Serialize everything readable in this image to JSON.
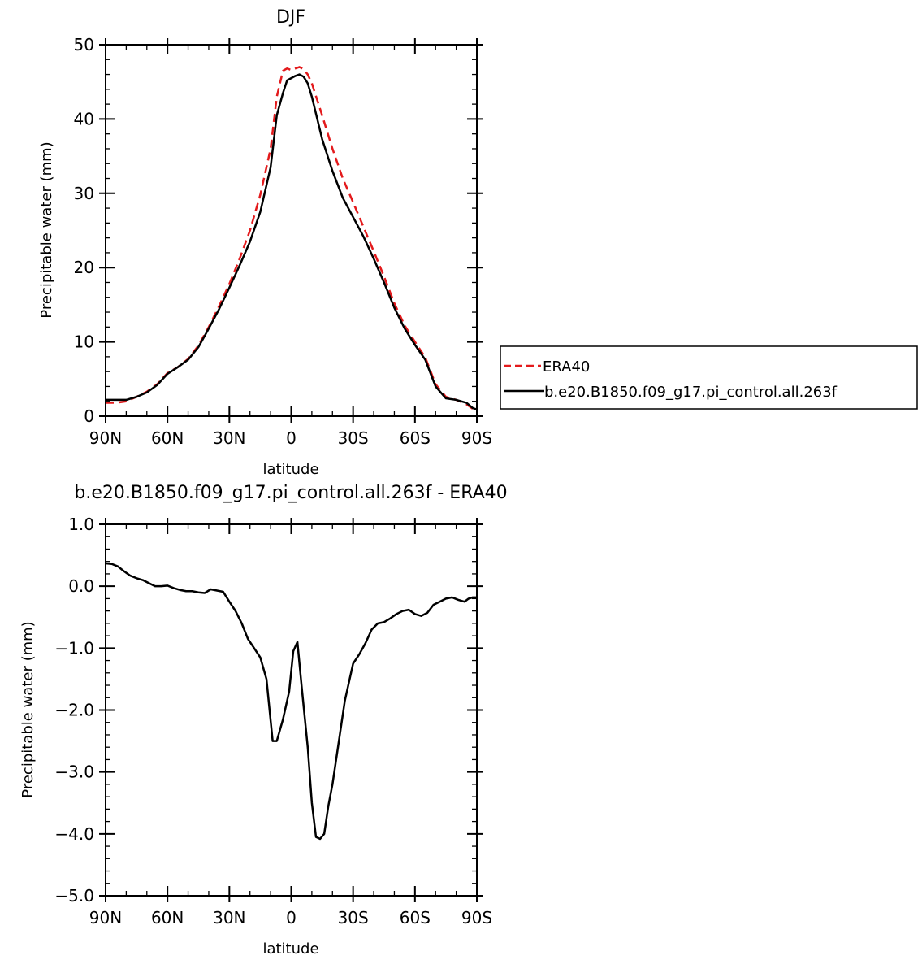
{
  "chart_data": [
    {
      "type": "line",
      "title": "DJF",
      "xlabel": "latitude",
      "ylabel": "Precipitable water (mm)",
      "xlim": [
        -90,
        90
      ],
      "ylim": [
        0,
        50
      ],
      "x_ticks": [
        -90,
        -60,
        -30,
        0,
        30,
        60,
        90
      ],
      "x_tick_labels": [
        "90N",
        "60N",
        "30N",
        "0",
        "30S",
        "60S",
        "90S"
      ],
      "y_ticks": [
        0,
        10,
        20,
        30,
        40,
        50
      ],
      "y_tick_labels": [
        "0",
        "10",
        "20",
        "30",
        "40",
        "50"
      ],
      "legend_position": "right",
      "series": [
        {
          "name": "ERA40",
          "color": "#e31a1c",
          "dash": true,
          "x": [
            -90,
            -85,
            -80,
            -75,
            -70,
            -65,
            -60,
            -55,
            -50,
            -45,
            -40,
            -35,
            -30,
            -25,
            -20,
            -15,
            -10,
            -7,
            -4,
            -2,
            0,
            2,
            4,
            6,
            8,
            10,
            15,
            20,
            25,
            30,
            35,
            40,
            45,
            50,
            55,
            60,
            65,
            70,
            75,
            80,
            85,
            88,
            90
          ],
          "y": [
            1.8,
            1.8,
            2.0,
            2.6,
            3.3,
            4.3,
            5.8,
            6.6,
            7.7,
            9.5,
            12.0,
            14.8,
            17.8,
            21.2,
            25.0,
            29.8,
            36.0,
            43.0,
            46.5,
            46.8,
            46.6,
            46.8,
            47.0,
            46.7,
            46.0,
            44.8,
            40.5,
            36.0,
            32.0,
            28.8,
            25.5,
            22.2,
            18.8,
            15.2,
            12.2,
            10.0,
            7.9,
            4.3,
            2.6,
            2.2,
            1.6,
            1.0,
            0.9
          ]
        },
        {
          "name": "b.e20.B1850.f09_g17.pi_control.all.263f",
          "color": "#000000",
          "dash": false,
          "x": [
            -90,
            -85,
            -80,
            -75,
            -70,
            -65,
            -60,
            -55,
            -50,
            -45,
            -40,
            -35,
            -30,
            -25,
            -20,
            -15,
            -10,
            -7,
            -4,
            -2,
            0,
            2,
            4,
            6,
            8,
            10,
            15,
            20,
            25,
            30,
            35,
            40,
            45,
            50,
            55,
            60,
            65,
            70,
            75,
            80,
            85,
            88,
            90
          ],
          "y": [
            2.2,
            2.2,
            2.2,
            2.6,
            3.2,
            4.2,
            5.7,
            6.6,
            7.6,
            9.3,
            11.8,
            14.4,
            17.3,
            20.3,
            23.5,
            27.5,
            33.5,
            40.5,
            43.5,
            45.2,
            45.5,
            45.8,
            46.0,
            45.7,
            44.8,
            43.0,
            37.3,
            33.0,
            29.4,
            26.8,
            24.2,
            21.2,
            18.0,
            14.6,
            11.8,
            9.6,
            7.6,
            4.0,
            2.4,
            2.2,
            1.8,
            1.1,
            0.9
          ]
        }
      ]
    },
    {
      "type": "line",
      "title": "b.e20.B1850.f09_g17.pi_control.all.263f - ERA40",
      "xlabel": "latitude",
      "ylabel": "Precipitable water (mm)",
      "xlim": [
        -90,
        90
      ],
      "ylim": [
        -5.0,
        1.0
      ],
      "x_ticks": [
        -90,
        -60,
        -30,
        0,
        30,
        60,
        90
      ],
      "x_tick_labels": [
        "90N",
        "60N",
        "30N",
        "0",
        "30S",
        "60S",
        "90S"
      ],
      "y_ticks": [
        -5.0,
        -4.0,
        -3.0,
        -2.0,
        -1.0,
        0.0,
        1.0
      ],
      "y_tick_labels": [
        "−5.0",
        "−4.0",
        "−3.0",
        "−2.0",
        "−1.0",
        "0.0",
        "1.0"
      ],
      "series": [
        {
          "color": "#000000",
          "dash": false,
          "x": [
            -90,
            -87,
            -84,
            -81,
            -78,
            -75,
            -72,
            -69,
            -66,
            -63,
            -60,
            -57,
            -54,
            -51,
            -48,
            -45,
            -42,
            -39,
            -36,
            -33,
            -30,
            -27,
            -24,
            -21,
            -18,
            -15,
            -12,
            -9,
            -7,
            -4,
            -1,
            1,
            3,
            5,
            8,
            10,
            12,
            14,
            16,
            18,
            20,
            22,
            24,
            26,
            28,
            30,
            33,
            36,
            39,
            42,
            45,
            48,
            51,
            54,
            57,
            60,
            63,
            66,
            69,
            72,
            75,
            78,
            81,
            84,
            86,
            88,
            90
          ],
          "y": [
            0.37,
            0.36,
            0.32,
            0.24,
            0.17,
            0.13,
            0.1,
            0.05,
            0.0,
            0.0,
            0.01,
            -0.03,
            -0.06,
            -0.08,
            -0.08,
            -0.1,
            -0.11,
            -0.05,
            -0.07,
            -0.09,
            -0.25,
            -0.4,
            -0.6,
            -0.85,
            -1.0,
            -1.15,
            -1.5,
            -2.5,
            -2.5,
            -2.15,
            -1.7,
            -1.05,
            -0.9,
            -1.6,
            -2.6,
            -3.5,
            -4.05,
            -4.08,
            -4.0,
            -3.55,
            -3.2,
            -2.75,
            -2.3,
            -1.85,
            -1.55,
            -1.25,
            -1.1,
            -0.92,
            -0.7,
            -0.6,
            -0.58,
            -0.52,
            -0.45,
            -0.4,
            -0.38,
            -0.45,
            -0.48,
            -0.43,
            -0.3,
            -0.25,
            -0.2,
            -0.18,
            -0.22,
            -0.25,
            -0.2,
            -0.18,
            -0.18
          ]
        }
      ]
    }
  ]
}
